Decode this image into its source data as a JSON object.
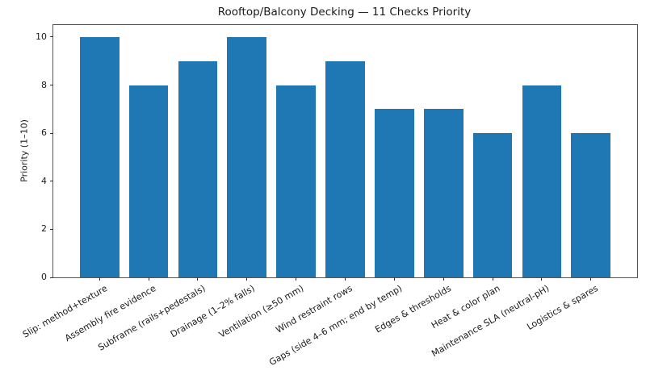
{
  "figure": {
    "title": "Rooftop/Balcony Decking — 11 Checks Priority",
    "ylabel": "Priority (1–10)"
  },
  "chart_data": {
    "type": "bar",
    "title": "Rooftop/Balcony Decking — 11 Checks Priority",
    "xlabel": "",
    "ylabel": "Priority (1–10)",
    "categories": [
      "Slip: method+texture",
      "Assembly fire evidence",
      "Subframe (rails+pedestals)",
      "Drainage (1–2% falls)",
      "Ventilation (≥50 mm)",
      "Wind restraint rows",
      "Gaps (side 4–6 mm; end by temp)",
      "Edges & thresholds",
      "Heat & color plan",
      "Maintenance SLA (neutral-pH)",
      "Logistics & spares"
    ],
    "values": [
      10,
      8,
      9,
      10,
      8,
      9,
      7,
      7,
      6,
      8,
      6
    ],
    "yticks": [
      0,
      2,
      4,
      6,
      8,
      10
    ],
    "ylim": [
      0,
      10.5
    ],
    "bar_color": "#1f77b4",
    "grid": false,
    "legend_position": "none"
  }
}
